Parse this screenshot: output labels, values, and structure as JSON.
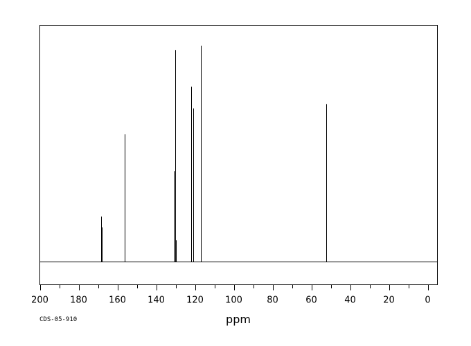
{
  "chart_data": {
    "type": "line",
    "title": "",
    "xlabel": "ppm",
    "ylabel": "",
    "xlim": [
      200,
      -5
    ],
    "x_reversed": true,
    "ylim": [
      0,
      1.0
    ],
    "grid": false,
    "tick_values": [
      200,
      180,
      160,
      140,
      120,
      100,
      80,
      60,
      40,
      20,
      0
    ],
    "tick_labels": [
      "200",
      "180",
      "160",
      "140",
      "120",
      "100",
      "80",
      "60",
      "40",
      "20",
      "0"
    ],
    "minor_tick_step": 10,
    "peaks": [
      {
        "x": 168.3,
        "y": 0.21
      },
      {
        "x": 168.1,
        "y": 0.16
      },
      {
        "x": 156.3,
        "y": 0.59
      },
      {
        "x": 156.1,
        "y": 0.41
      },
      {
        "x": 131.0,
        "y": 0.42
      },
      {
        "x": 130.2,
        "y": 0.98
      },
      {
        "x": 130.0,
        "y": 0.1
      },
      {
        "x": 121.8,
        "y": 0.81
      },
      {
        "x": 121.0,
        "y": 0.71
      },
      {
        "x": 116.8,
        "y": 1.0
      },
      {
        "x": 52.5,
        "y": 0.73
      }
    ]
  },
  "footnote": "CDS-05-910"
}
